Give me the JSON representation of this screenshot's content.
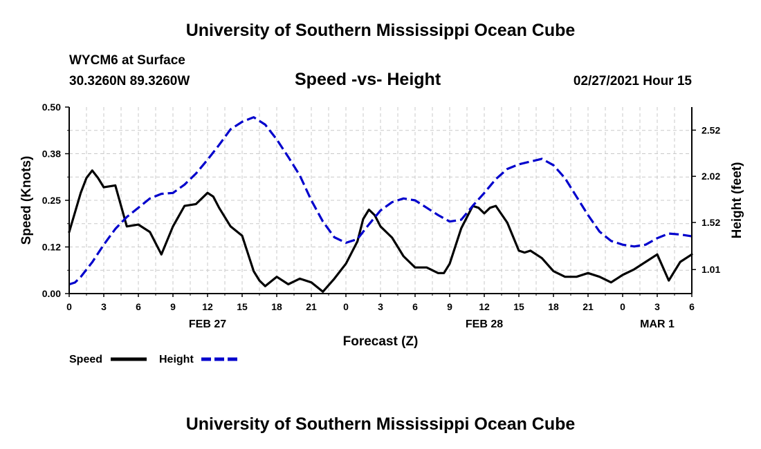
{
  "header": {
    "title_top": "University of Southern Mississippi Ocean Cube",
    "station": "WYCM6 at Surface",
    "coords": "30.3260N 89.3260W",
    "datetime": "02/27/2021 Hour 15",
    "title_bottom": "University of Southern Mississippi Ocean Cube"
  },
  "chart_data": {
    "type": "line",
    "title": "Speed -vs- Height",
    "xlabel": "Forecast (Z)",
    "ylabel_left": "Speed (Knots)",
    "ylabel_right": "Height (feet)",
    "xlim": [
      0,
      54
    ],
    "ylim_left": [
      0,
      0.5
    ],
    "ylim_right": [
      0.75,
      2.77
    ],
    "grid": true,
    "legend_position": "bottom-left",
    "x_ticks": [
      {
        "x": 0,
        "label": "0"
      },
      {
        "x": 3,
        "label": "3"
      },
      {
        "x": 6,
        "label": "6"
      },
      {
        "x": 9,
        "label": "9"
      },
      {
        "x": 12,
        "label": "12"
      },
      {
        "x": 15,
        "label": "15"
      },
      {
        "x": 18,
        "label": "18"
      },
      {
        "x": 21,
        "label": "21"
      },
      {
        "x": 24,
        "label": "0"
      },
      {
        "x": 27,
        "label": "3"
      },
      {
        "x": 30,
        "label": "6"
      },
      {
        "x": 33,
        "label": "9"
      },
      {
        "x": 36,
        "label": "12"
      },
      {
        "x": 39,
        "label": "15"
      },
      {
        "x": 42,
        "label": "18"
      },
      {
        "x": 45,
        "label": "21"
      },
      {
        "x": 48,
        "label": "0"
      },
      {
        "x": 51,
        "label": "3"
      },
      {
        "x": 54,
        "label": "6"
      }
    ],
    "left_ticks": [
      {
        "value": 0.0,
        "label": "0.00"
      },
      {
        "value": 0.125,
        "label": "0.12"
      },
      {
        "value": 0.25,
        "label": "0.25"
      },
      {
        "value": 0.375,
        "label": "0.38"
      },
      {
        "value": 0.5,
        "label": "0.50"
      }
    ],
    "right_ticks": [
      {
        "value": 1.01,
        "label": "1.01"
      },
      {
        "value": 1.52,
        "label": "1.52"
      },
      {
        "value": 2.02,
        "label": "2.02"
      },
      {
        "value": 2.52,
        "label": "2.52"
      }
    ],
    "date_labels": [
      {
        "x": 12,
        "label": "FEB 27"
      },
      {
        "x": 36,
        "label": "FEB 28"
      },
      {
        "x": 51,
        "label": "MAR 1"
      }
    ],
    "series": [
      {
        "name": "Speed",
        "axis": "left",
        "color": "#000000",
        "style": "solid",
        "points": [
          [
            0,
            0.165
          ],
          [
            1,
            0.27
          ],
          [
            1.5,
            0.31
          ],
          [
            2,
            0.33
          ],
          [
            2.5,
            0.31
          ],
          [
            3,
            0.285
          ],
          [
            4,
            0.29
          ],
          [
            5,
            0.18
          ],
          [
            6,
            0.185
          ],
          [
            7,
            0.165
          ],
          [
            8,
            0.105
          ],
          [
            9,
            0.18
          ],
          [
            10,
            0.235
          ],
          [
            11,
            0.24
          ],
          [
            12,
            0.27
          ],
          [
            12.5,
            0.26
          ],
          [
            13,
            0.23
          ],
          [
            14,
            0.18
          ],
          [
            15,
            0.155
          ],
          [
            16,
            0.06
          ],
          [
            16.5,
            0.035
          ],
          [
            17,
            0.02
          ],
          [
            18,
            0.045
          ],
          [
            19,
            0.025
          ],
          [
            20,
            0.04
          ],
          [
            21,
            0.03
          ],
          [
            22,
            0.005
          ],
          [
            23,
            0.04
          ],
          [
            24,
            0.08
          ],
          [
            25,
            0.14
          ],
          [
            25.5,
            0.2
          ],
          [
            26,
            0.225
          ],
          [
            26.5,
            0.21
          ],
          [
            27,
            0.18
          ],
          [
            28,
            0.15
          ],
          [
            29,
            0.1
          ],
          [
            30,
            0.07
          ],
          [
            31,
            0.07
          ],
          [
            32,
            0.055
          ],
          [
            32.5,
            0.055
          ],
          [
            33,
            0.08
          ],
          [
            34,
            0.175
          ],
          [
            35,
            0.235
          ],
          [
            35.5,
            0.23
          ],
          [
            36,
            0.215
          ],
          [
            36.5,
            0.23
          ],
          [
            37,
            0.235
          ],
          [
            38,
            0.19
          ],
          [
            39,
            0.115
          ],
          [
            39.5,
            0.11
          ],
          [
            40,
            0.115
          ],
          [
            41,
            0.095
          ],
          [
            42,
            0.06
          ],
          [
            43,
            0.045
          ],
          [
            44,
            0.045
          ],
          [
            45,
            0.055
          ],
          [
            46,
            0.045
          ],
          [
            47,
            0.03
          ],
          [
            48,
            0.05
          ],
          [
            49,
            0.065
          ],
          [
            50,
            0.085
          ],
          [
            51,
            0.105
          ],
          [
            52,
            0.035
          ],
          [
            53,
            0.085
          ],
          [
            54,
            0.105
          ]
        ]
      },
      {
        "name": "Height",
        "axis": "right",
        "color": "#0000cc",
        "style": "dashed",
        "points": [
          [
            0,
            0.85
          ],
          [
            0.5,
            0.87
          ],
          [
            1,
            0.93
          ],
          [
            2,
            1.09
          ],
          [
            3,
            1.28
          ],
          [
            4,
            1.45
          ],
          [
            5,
            1.58
          ],
          [
            6,
            1.68
          ],
          [
            7,
            1.78
          ],
          [
            8,
            1.83
          ],
          [
            9,
            1.84
          ],
          [
            10,
            1.93
          ],
          [
            11,
            2.05
          ],
          [
            12,
            2.2
          ],
          [
            13,
            2.36
          ],
          [
            14,
            2.53
          ],
          [
            15,
            2.61
          ],
          [
            16,
            2.66
          ],
          [
            17,
            2.58
          ],
          [
            18,
            2.42
          ],
          [
            19,
            2.23
          ],
          [
            20,
            2.03
          ],
          [
            21,
            1.76
          ],
          [
            22,
            1.53
          ],
          [
            23,
            1.36
          ],
          [
            24,
            1.3
          ],
          [
            25,
            1.34
          ],
          [
            26,
            1.5
          ],
          [
            27,
            1.65
          ],
          [
            28,
            1.74
          ],
          [
            29,
            1.78
          ],
          [
            30,
            1.76
          ],
          [
            31,
            1.68
          ],
          [
            32,
            1.6
          ],
          [
            33,
            1.53
          ],
          [
            34,
            1.55
          ],
          [
            35,
            1.7
          ],
          [
            36,
            1.84
          ],
          [
            37,
            1.99
          ],
          [
            38,
            2.1
          ],
          [
            39,
            2.15
          ],
          [
            40,
            2.18
          ],
          [
            41,
            2.21
          ],
          [
            42,
            2.14
          ],
          [
            43,
            2.0
          ],
          [
            44,
            1.8
          ],
          [
            45,
            1.6
          ],
          [
            46,
            1.42
          ],
          [
            47,
            1.32
          ],
          [
            48,
            1.28
          ],
          [
            49,
            1.26
          ],
          [
            50,
            1.28
          ],
          [
            51,
            1.35
          ],
          [
            52,
            1.4
          ],
          [
            53,
            1.39
          ],
          [
            54,
            1.37
          ]
        ]
      }
    ]
  }
}
